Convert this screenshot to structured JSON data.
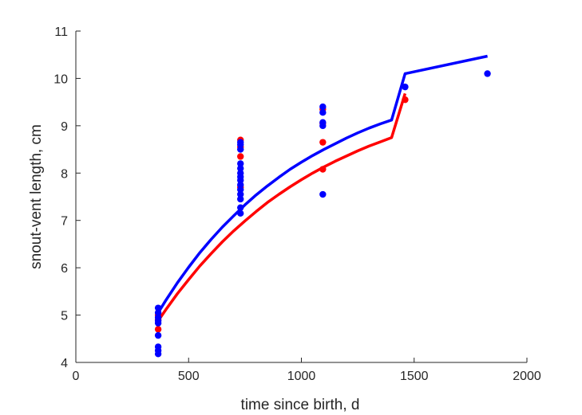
{
  "chart_data": {
    "type": "scatter",
    "title": "",
    "xlabel": "time since birth, d",
    "ylabel": "snout-vent length, cm",
    "xlim": [
      0,
      2000
    ],
    "ylim": [
      4,
      11
    ],
    "xticks": [
      0,
      500,
      1000,
      1500,
      2000
    ],
    "yticks": [
      4,
      5,
      6,
      7,
      8,
      9,
      10,
      11
    ],
    "xtick_labels": [
      "0",
      "500",
      "1000",
      "1500",
      "2000"
    ],
    "ytick_labels": [
      "4",
      "5",
      "6",
      "7",
      "8",
      "9",
      "10",
      "11"
    ],
    "grid": false,
    "legend": "none",
    "series": [
      {
        "color": "#ff0000",
        "points": [
          [
            365,
            4.7
          ],
          [
            365,
            4.9
          ],
          [
            365,
            5.0
          ],
          [
            730,
            7.7
          ],
          [
            730,
            8.35
          ],
          [
            730,
            8.55
          ],
          [
            730,
            8.7
          ],
          [
            1095,
            8.08
          ],
          [
            1095,
            8.65
          ],
          [
            1095,
            9.05
          ],
          [
            1095,
            9.35
          ],
          [
            1460,
            9.55
          ]
        ],
        "fit": [
          [
            365,
            4.88
          ],
          [
            400,
            5.12
          ],
          [
            450,
            5.45
          ],
          [
            500,
            5.75
          ],
          [
            550,
            6.04
          ],
          [
            600,
            6.3
          ],
          [
            650,
            6.55
          ],
          [
            700,
            6.78
          ],
          [
            750,
            6.99
          ],
          [
            800,
            7.19
          ],
          [
            850,
            7.38
          ],
          [
            900,
            7.55
          ],
          [
            950,
            7.71
          ],
          [
            1000,
            7.86
          ],
          [
            1050,
            8.0
          ],
          [
            1100,
            8.13
          ],
          [
            1150,
            8.25
          ],
          [
            1200,
            8.36
          ],
          [
            1250,
            8.47
          ],
          [
            1300,
            8.57
          ],
          [
            1350,
            8.66
          ],
          [
            1400,
            8.75
          ],
          [
            1460,
            9.68
          ]
        ]
      },
      {
        "color": "#0000ff",
        "points": [
          [
            365,
            4.18
          ],
          [
            365,
            4.25
          ],
          [
            365,
            4.33
          ],
          [
            365,
            4.57
          ],
          [
            365,
            4.83
          ],
          [
            365,
            4.88
          ],
          [
            365,
            4.95
          ],
          [
            365,
            5.05
          ],
          [
            365,
            5.15
          ],
          [
            730,
            7.15
          ],
          [
            730,
            7.27
          ],
          [
            730,
            7.45
          ],
          [
            730,
            7.55
          ],
          [
            730,
            7.65
          ],
          [
            730,
            7.75
          ],
          [
            730,
            7.85
          ],
          [
            730,
            7.92
          ],
          [
            730,
            8.0
          ],
          [
            730,
            8.1
          ],
          [
            730,
            8.2
          ],
          [
            730,
            8.5
          ],
          [
            730,
            8.6
          ],
          [
            730,
            8.65
          ],
          [
            1095,
            7.55
          ],
          [
            1095,
            9.0
          ],
          [
            1095,
            9.07
          ],
          [
            1095,
            9.28
          ],
          [
            1095,
            9.4
          ],
          [
            1460,
            9.82
          ],
          [
            1825,
            10.1
          ]
        ],
        "fit": [
          [
            365,
            5.05
          ],
          [
            400,
            5.32
          ],
          [
            450,
            5.68
          ],
          [
            500,
            6.01
          ],
          [
            550,
            6.32
          ],
          [
            600,
            6.6
          ],
          [
            650,
            6.86
          ],
          [
            700,
            7.1
          ],
          [
            750,
            7.33
          ],
          [
            800,
            7.54
          ],
          [
            850,
            7.73
          ],
          [
            900,
            7.91
          ],
          [
            950,
            8.08
          ],
          [
            1000,
            8.23
          ],
          [
            1050,
            8.37
          ],
          [
            1100,
            8.5
          ],
          [
            1150,
            8.62
          ],
          [
            1200,
            8.74
          ],
          [
            1250,
            8.85
          ],
          [
            1300,
            8.95
          ],
          [
            1350,
            9.04
          ],
          [
            1400,
            9.12
          ],
          [
            1460,
            10.1
          ],
          [
            1825,
            10.47
          ]
        ]
      }
    ]
  }
}
